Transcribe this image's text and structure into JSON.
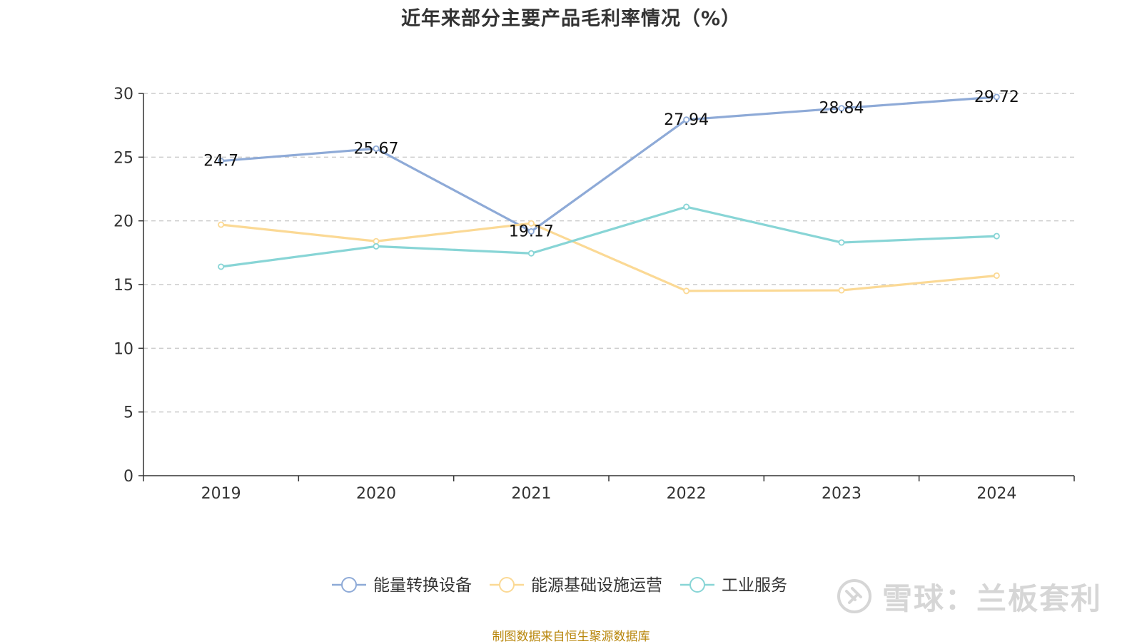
{
  "title": "近年来部分主要产品毛利率情况（%）",
  "watermark": {
    "text": "雪球：兰板套利"
  },
  "source": "制图数据来自恒生聚源数据库",
  "chart_data": {
    "type": "line",
    "title": "近年来部分主要产品毛利率情况（%）",
    "x": [
      "2019",
      "2020",
      "2021",
      "2022",
      "2023",
      "2024"
    ],
    "ylim": [
      0,
      30
    ],
    "yticks": [
      0,
      5,
      10,
      15,
      20,
      25,
      30
    ],
    "grid": true,
    "legend_position": "bottom",
    "series": [
      {
        "name": "能量转换设备",
        "color": "#8eaad7",
        "values": [
          24.7,
          25.67,
          19.17,
          27.94,
          28.84,
          29.72
        ],
        "labels": [
          "24.7",
          "25.67",
          "19.17",
          "27.94",
          "28.84",
          "29.72"
        ]
      },
      {
        "name": "能源基础设施运营",
        "color": "#fbd995",
        "values": [
          19.7,
          18.4,
          19.8,
          14.5,
          14.55,
          15.7
        ],
        "labels": []
      },
      {
        "name": "工业服务",
        "color": "#88d5d6",
        "values": [
          16.4,
          18.0,
          17.45,
          21.1,
          18.3,
          18.8
        ],
        "labels": []
      }
    ]
  }
}
